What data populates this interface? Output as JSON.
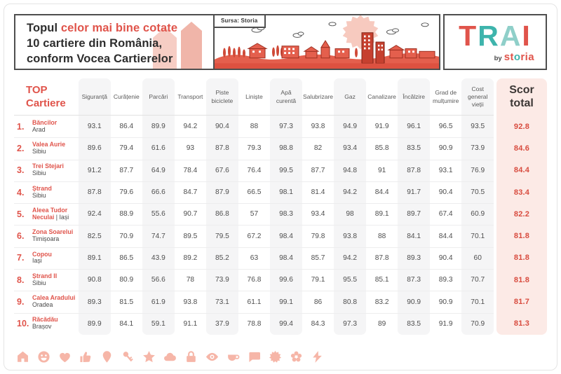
{
  "title": {
    "prefix": "Topul",
    "highlight": "celor mai bine cotate",
    "line2": "10 cartiere din România,",
    "line3": "conform Vocea Cartierelor"
  },
  "header": {
    "source_label": "Sursa: Storia"
  },
  "logo": {
    "text": "TRAI",
    "by": "by",
    "brand": "storia"
  },
  "table_header": {
    "top1": "TOP",
    "top2": "Cartiere"
  },
  "chart_data": {
    "type": "table",
    "title": "Topul celor mai bine cotate 10 cartiere din România, conform Vocea Cartierelor",
    "columns": [
      "Siguranță",
      "Curățenie",
      "Parcări",
      "Transport",
      "Piste biciclete",
      "Liniște",
      "Apă curentă",
      "Salubrizare",
      "Gaz",
      "Canalizare",
      "Încălzire",
      "Grad de mulțumire",
      "Cost general vieții"
    ],
    "score_column": "Scor total",
    "rows": [
      {
        "rank": "1.",
        "name": "Băncilor",
        "city": "Arad",
        "values": [
          93.1,
          86.4,
          89.9,
          94.2,
          90.4,
          88,
          97.3,
          93.8,
          94.9,
          91.9,
          96.1,
          96.5,
          93.5
        ],
        "score": 92.8
      },
      {
        "rank": "2.",
        "name": "Valea Aurie",
        "city": "Sibiu",
        "values": [
          89.6,
          79.4,
          61.6,
          93,
          87.8,
          79.3,
          98.8,
          82,
          93.4,
          85.8,
          83.5,
          90.9,
          73.9
        ],
        "score": 84.6
      },
      {
        "rank": "3.",
        "name": "Trei Stejari",
        "city": "Sibiu",
        "values": [
          91.2,
          87.7,
          64.9,
          78.4,
          67.6,
          76.4,
          99.5,
          87.7,
          94.8,
          91,
          87.8,
          93.1,
          76.9
        ],
        "score": 84.4
      },
      {
        "rank": "4.",
        "name": "Ștrand",
        "city": "Sibiu",
        "values": [
          87.8,
          79.6,
          66.6,
          84.7,
          87.9,
          66.5,
          98.1,
          81.4,
          94.2,
          84.4,
          91.7,
          90.4,
          70.5
        ],
        "score": 83.4
      },
      {
        "rank": "5.",
        "name": "Aleea Tudor Neculai",
        "city": "Iași",
        "inline_city": true,
        "city_separator": "| ",
        "values": [
          92.4,
          88.9,
          55.6,
          90.7,
          86.8,
          57,
          98.3,
          93.4,
          98,
          89.1,
          89.7,
          67.4,
          60.9
        ],
        "score": 82.2
      },
      {
        "rank": "6.",
        "name": "Zona Soarelui",
        "city": "Timișoara",
        "values": [
          82.5,
          70.9,
          74.7,
          89.5,
          79.5,
          67.2,
          98.4,
          79.8,
          93.8,
          88,
          84.1,
          84.4,
          70.1
        ],
        "score": 81.8
      },
      {
        "rank": "7.",
        "name": "Copou",
        "city": "Iași",
        "values": [
          89.1,
          86.5,
          43.9,
          89.2,
          85.2,
          63,
          98.4,
          85.7,
          94.2,
          87.8,
          89.3,
          90.4,
          60
        ],
        "score": 81.8
      },
      {
        "rank": "8.",
        "name": "Ștrand II",
        "city": "Sibiu",
        "values": [
          90.8,
          80.9,
          56.6,
          78,
          73.9,
          76.8,
          99.6,
          79.1,
          95.5,
          85.1,
          87.3,
          89.3,
          70.7
        ],
        "score": 81.8
      },
      {
        "rank": "9.",
        "name": "Calea Aradului",
        "city": "Oradea",
        "values": [
          89.3,
          81.5,
          61.9,
          93.8,
          73.1,
          61.1,
          99.1,
          86,
          80.8,
          83.2,
          90.9,
          90.9,
          70.1
        ],
        "score": 81.7
      },
      {
        "rank": "10.",
        "name": "Răcădău",
        "city": "Brașov",
        "values": [
          89.9,
          84.1,
          59.1,
          91.1,
          37.9,
          78.8,
          99.4,
          84.3,
          97.3,
          89,
          83.5,
          91.9,
          70.9
        ],
        "score": 81.3
      }
    ]
  },
  "footer_icons": [
    "house-icon",
    "smiley-icon",
    "heart-icon",
    "thumbs-up-icon",
    "location-pin-icon",
    "key-icon",
    "star-icon",
    "cloud-icon",
    "lock-icon",
    "eye-icon",
    "coffee-cup-icon",
    "speech-bubble-icon",
    "sun-icon",
    "flower-icon",
    "lightning-icon"
  ],
  "colors": {
    "accent": "#e0544b",
    "teal": "#3eb4ac",
    "pink_column": "#fceae6",
    "gray_column": "#f5f5f6",
    "icon": "#f6b6a8",
    "illustration_red": "#e45f4d",
    "illustration_sun": "#f7cabf"
  }
}
